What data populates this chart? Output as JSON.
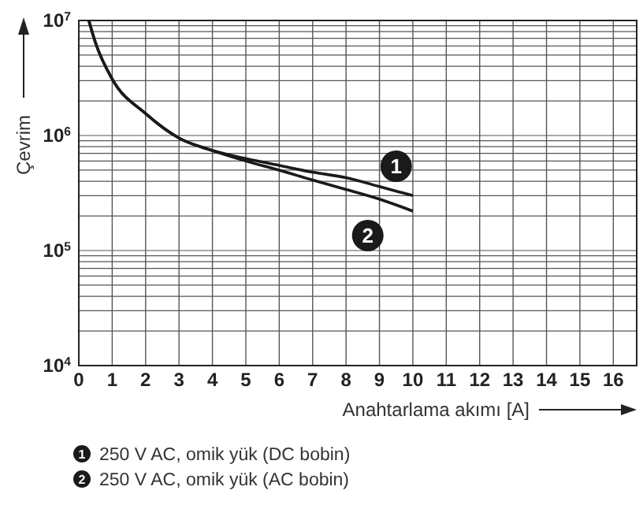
{
  "chart_data": {
    "type": "line",
    "xlabel": "Anahtarlama akımı [A]",
    "ylabel": "Çevrim",
    "xlim": [
      0,
      16.7
    ],
    "xticks": [
      0,
      1,
      2,
      3,
      4,
      5,
      6,
      7,
      8,
      9,
      10,
      11,
      12,
      13,
      14,
      15,
      16
    ],
    "ylim": [
      10000,
      10000000
    ],
    "log": "y",
    "yticks": [
      {
        "value": 10000,
        "label": "10$^{4}$"
      },
      {
        "value": 100000,
        "label": "10$^{5}$"
      },
      {
        "value": 1000000,
        "label": "10$^{6}$"
      },
      {
        "value": 10000000,
        "label": "10$^{7}$"
      }
    ],
    "grid": true,
    "legend": "bottom",
    "marker": "none",
    "line_style": "solid",
    "series": [
      {
        "name": "250 V AC, omik yük (DC bobin)",
        "color": "#1a1a1a",
        "x": [
          0.3,
          0.5,
          1,
          2,
          3,
          4,
          5,
          6,
          7,
          8,
          9,
          10
        ],
        "values": [
          10000000,
          6400000,
          3100000,
          1550000,
          950000,
          740000,
          630000,
          550000,
          480000,
          430000,
          360000,
          300000
        ]
      },
      {
        "name": "250 V AC, omik yük (AC bobin)",
        "color": "#1a1a1a",
        "x": [
          0.3,
          0.5,
          1,
          2,
          3,
          4,
          5,
          6,
          7,
          8,
          9,
          10
        ],
        "values": [
          10000000,
          6400000,
          3100000,
          1550000,
          950000,
          740000,
          600000,
          500000,
          410000,
          340000,
          280000,
          220000
        ]
      }
    ],
    "annotations": [
      {
        "text": "1",
        "x": 9.5,
        "y": 540000
      },
      {
        "text": "2",
        "x": 8.65,
        "y": 135000
      }
    ]
  }
}
